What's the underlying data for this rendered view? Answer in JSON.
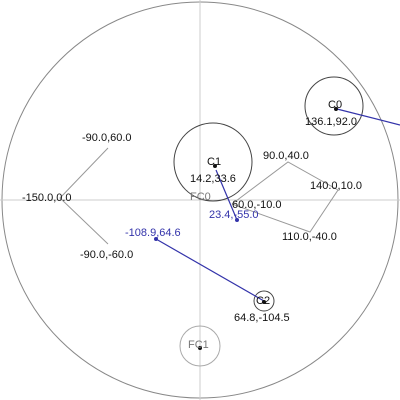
{
  "colors": {
    "circle": "#888888",
    "ring": "#444444",
    "polyline": "#999999",
    "vector": "#3333aa",
    "axis": "#cccccc",
    "text": "#111111"
  },
  "nodes": {
    "c0": {
      "name": "C0",
      "coord": "136.1,92.0"
    },
    "c1": {
      "name": "C1",
      "coord": "14.2,33.6"
    },
    "c2": {
      "name": "C2",
      "coord": "64.8,-104.5"
    },
    "fc0": {
      "name": "FC0",
      "coord": "23.4,-55.0"
    },
    "fc1": {
      "name": "FC1"
    },
    "blue_point": {
      "coord": "-108.9,64.6"
    }
  },
  "polyline_labels": {
    "p_m90_60": "-90.0,60.0",
    "p_m150_0": "-150.0,0.0",
    "p_m90_m60": "-90.0,-60.0",
    "p_60_m10": "60.0,-10.0",
    "p_90_40": "90.0,40.0",
    "p_140_10": "140.0,10.0",
    "p_110_m40": "110.0,-40.0"
  }
}
